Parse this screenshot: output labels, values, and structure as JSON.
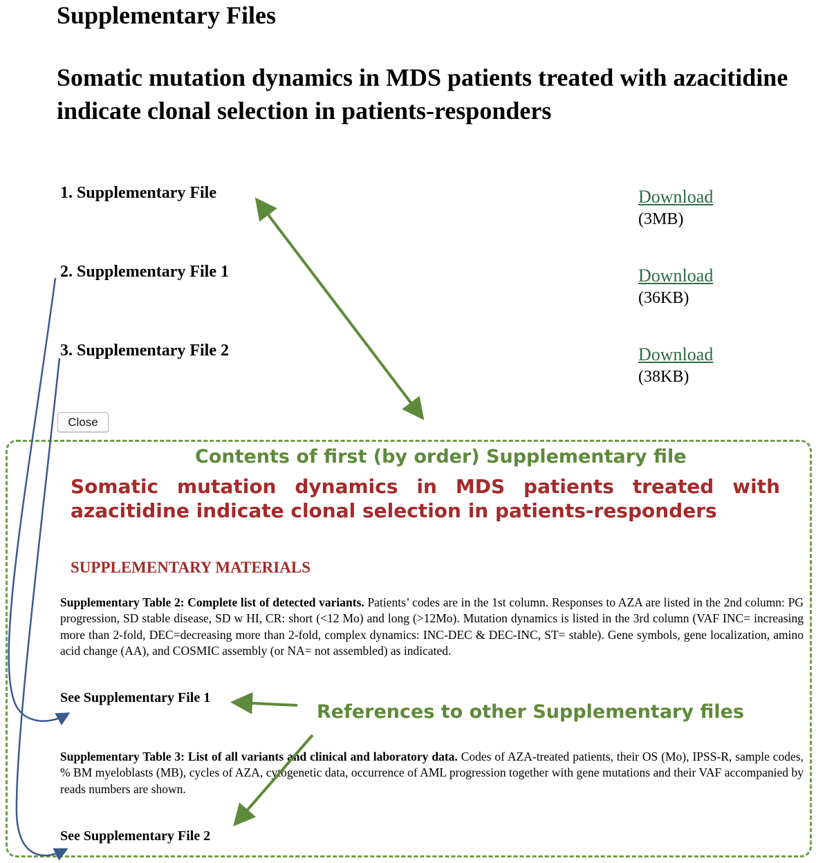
{
  "page_title": "Supplementary Files",
  "article_title": "Somatic mutation dynamics in MDS patients treated with azacitidine indicate clonal selection in patients-responders",
  "files": [
    {
      "label": "1. Supplementary File",
      "link": "Download",
      "size": "(3MB)"
    },
    {
      "label": "2. Supplementary File 1",
      "link": "Download",
      "size": "(36KB)"
    },
    {
      "label": "3. Supplementary File 2",
      "link": "Download",
      "size": "(38KB)"
    }
  ],
  "close_label": "Close",
  "annotations": {
    "contents_label": "Contents of first (by order) Supplementary file",
    "references_label": "References to other Supplementary files"
  },
  "preview": {
    "title": "Somatic mutation dynamics in MDS patients treated with azacitidine indicate clonal selection in patients-responders",
    "heading": "SUPPLEMENTARY MATERIALS",
    "table2_title": "Supplementary Table 2: Complete list of detected variants.",
    "table2_text": " Patients’ codes are in the 1st column. Responses to AZA are listed in the 2nd column: PG progression, SD stable disease, SD w HI, CR: short (<12 Mo) and long (>12Mo). Mutation dynamics is listed in the 3rd column (VAF INC= increasing more than 2-fold, DEC=decreasing more than 2-fold, complex dynamics: INC-DEC & DEC-INC, ST= stable). Gene symbols, gene localization, amino acid change (AA), and COSMIC assembly (or NA= not assembled) as indicated.",
    "see_file1": "See Supplementary File 1",
    "table3_title": "Supplementary Table 3: List of all variants and clinical and laboratory data.",
    "table3_text": " Codes of AZA-treated patients, their OS (Mo), IPSS-R, sample codes, % BM myeloblasts (MB), cycles of AZA, cytogenetic data, occurrence of AML progression together with gene mutations and their VAF accompanied by reads numbers are shown.",
    "see_file2": "See Supplementary File 2"
  },
  "colors": {
    "link": "#2e6a46",
    "annotation_green": "#5e8a3b",
    "title_red": "#a52a2a",
    "arrow_blue": "#3b5a8c"
  }
}
